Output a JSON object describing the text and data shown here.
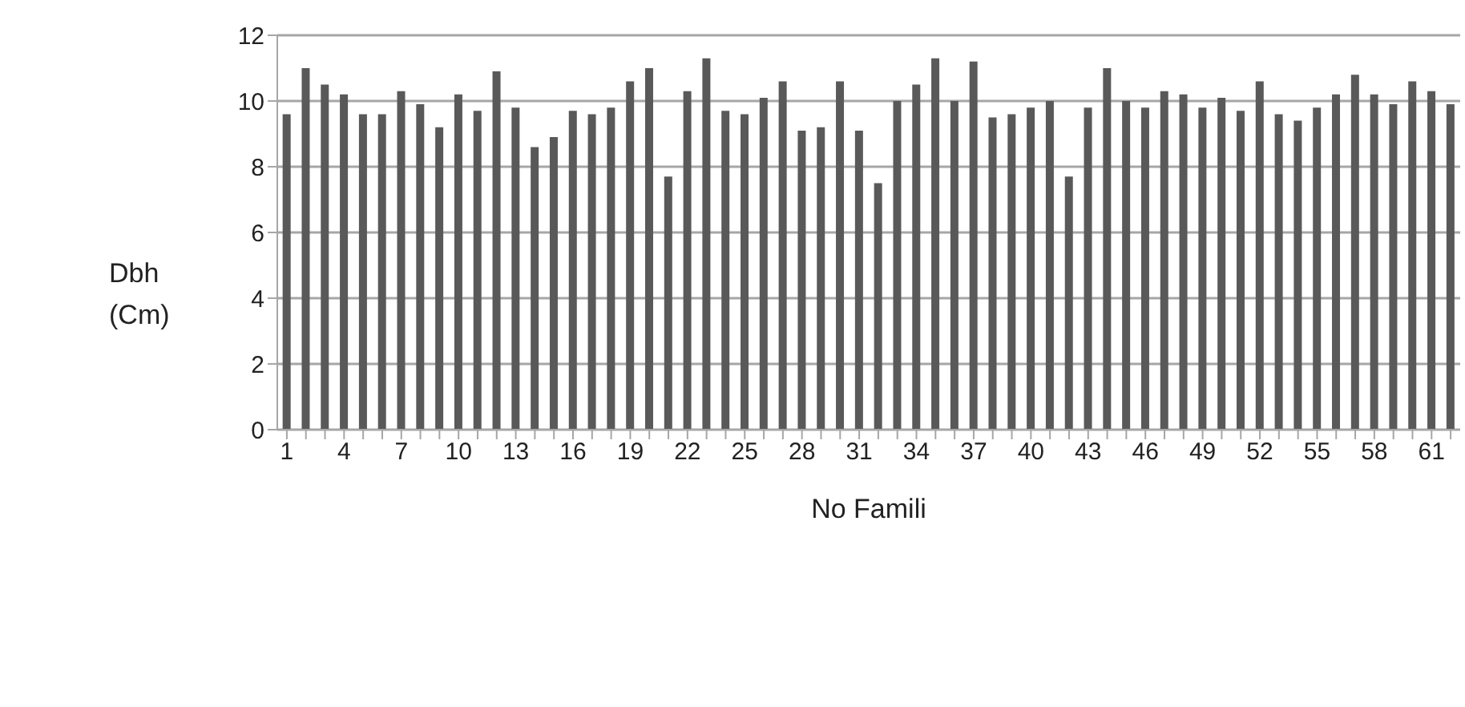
{
  "chart_data": {
    "type": "bar",
    "xlabel": "No Famili",
    "ylabel": "Dbh (Cm)",
    "categories": [
      "1",
      null,
      null,
      "4",
      null,
      null,
      "7",
      null,
      null,
      "10",
      null,
      null,
      "13",
      null,
      null,
      "16",
      null,
      null,
      "19",
      null,
      null,
      "22",
      null,
      null,
      "25",
      null,
      null,
      "28",
      null,
      null,
      "31",
      null,
      null,
      "34",
      null,
      null,
      "37",
      null,
      null,
      "40",
      null,
      null,
      "43",
      null,
      null,
      "46",
      null,
      null,
      "49",
      null,
      null,
      "52",
      null,
      null,
      "55",
      null,
      null,
      "58",
      null,
      null,
      "61",
      null
    ],
    "values": [
      9.6,
      11.0,
      10.5,
      10.2,
      9.6,
      9.6,
      10.3,
      9.9,
      9.2,
      10.2,
      9.7,
      10.9,
      9.8,
      8.6,
      8.9,
      9.7,
      9.6,
      9.8,
      10.6,
      11.0,
      7.7,
      10.3,
      11.3,
      9.7,
      9.6,
      10.1,
      10.6,
      9.1,
      9.2,
      10.6,
      9.1,
      7.5,
      10.0,
      10.5,
      11.3,
      10.0,
      11.2,
      9.5,
      9.6,
      9.8,
      10.0,
      7.7,
      9.8,
      11.0,
      10.0,
      9.8,
      10.3,
      10.2,
      9.8,
      10.1,
      9.7,
      10.6,
      9.6,
      9.4,
      9.8,
      10.2,
      10.8,
      10.2,
      9.9,
      10.6,
      10.3,
      9.9
    ],
    "color": "#595959",
    "ylim": [
      0,
      12
    ],
    "yticks": [
      0,
      2,
      4,
      6,
      8,
      10,
      12
    ],
    "grid": "y"
  }
}
